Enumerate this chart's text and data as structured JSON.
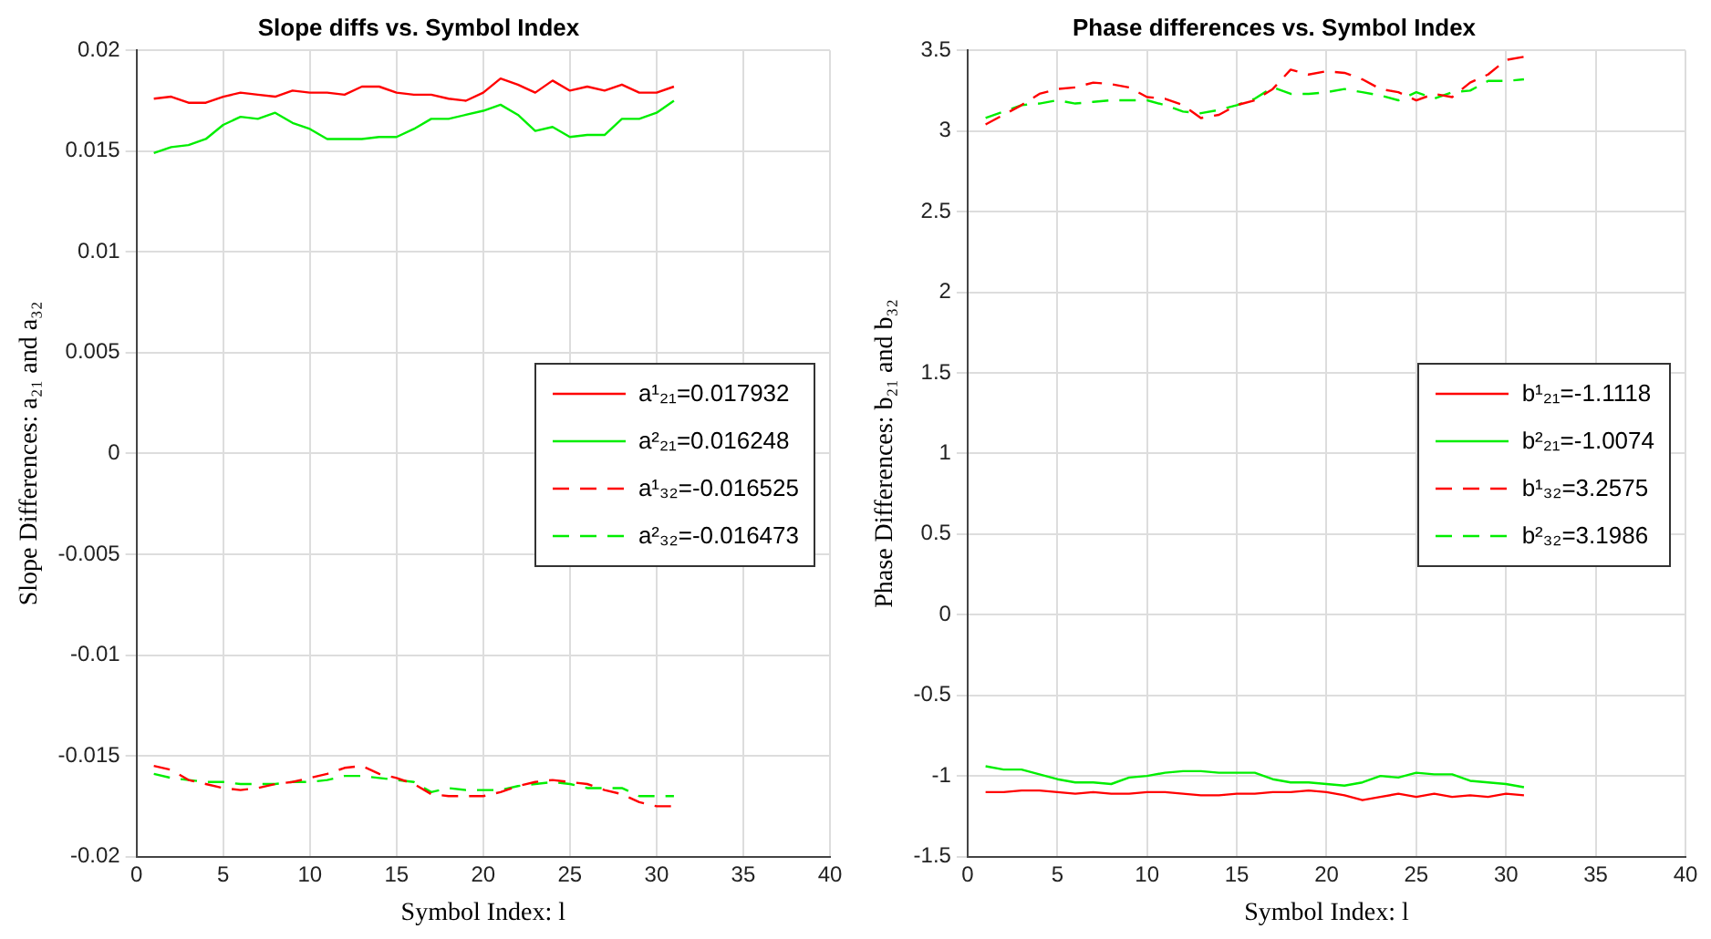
{
  "chart_data": [
    {
      "type": "line",
      "title": "Slope diffs vs. Symbol Index",
      "xlabel": "Symbol Index: l",
      "ylabel": "Slope Differences: a₂₁ and a₃₂",
      "x": [
        1,
        2,
        3,
        4,
        5,
        6,
        7,
        8,
        9,
        10,
        11,
        12,
        13,
        14,
        15,
        16,
        17,
        18,
        19,
        20,
        21,
        22,
        23,
        24,
        25,
        26,
        27,
        28,
        29,
        30,
        31
      ],
      "xlim": [
        0,
        40
      ],
      "xticks": [
        0,
        5,
        10,
        15,
        20,
        25,
        30,
        35,
        40
      ],
      "ylim": [
        -0.02,
        0.02
      ],
      "yticks": [
        -0.02,
        -0.015,
        -0.01,
        -0.005,
        0,
        0.005,
        0.01,
        0.015,
        0.02
      ],
      "grid": true,
      "legend": "right",
      "marker": "none",
      "series": [
        {
          "name": "a¹₂₁=0.017932",
          "color": "#ff0000",
          "line_style": "solid",
          "values": [
            0.0176,
            0.0177,
            0.0174,
            0.0174,
            0.0177,
            0.0179,
            0.0178,
            0.0177,
            0.018,
            0.0179,
            0.0179,
            0.0178,
            0.0182,
            0.0182,
            0.0179,
            0.0178,
            0.0178,
            0.0176,
            0.0175,
            0.0179,
            0.0186,
            0.0183,
            0.0179,
            0.0185,
            0.018,
            0.0182,
            0.018,
            0.0183,
            0.0179,
            0.0179,
            0.0182
          ]
        },
        {
          "name": "a²₂₁=0.016248",
          "color": "#00ee00",
          "line_style": "solid",
          "values": [
            0.0149,
            0.0152,
            0.0153,
            0.0156,
            0.0163,
            0.0167,
            0.0166,
            0.0169,
            0.0164,
            0.0161,
            0.0156,
            0.0156,
            0.0156,
            0.0157,
            0.0157,
            0.0161,
            0.0166,
            0.0166,
            0.0168,
            0.017,
            0.0173,
            0.0168,
            0.016,
            0.0162,
            0.0157,
            0.0158,
            0.0158,
            0.0166,
            0.0166,
            0.0169,
            0.0175
          ]
        },
        {
          "name": "a¹₃₂=-0.016525",
          "color": "#ff0000",
          "line_style": "dashed",
          "values": [
            -0.0155,
            -0.0157,
            -0.0162,
            -0.0164,
            -0.0166,
            -0.0167,
            -0.0166,
            -0.0164,
            -0.0163,
            -0.0161,
            -0.0159,
            -0.0156,
            -0.0155,
            -0.0159,
            -0.0161,
            -0.0164,
            -0.0169,
            -0.017,
            -0.017,
            -0.017,
            -0.0168,
            -0.0165,
            -0.0163,
            -0.0162,
            -0.0163,
            -0.0164,
            -0.0167,
            -0.0169,
            -0.0173,
            -0.0175,
            -0.0175
          ]
        },
        {
          "name": "a²₃₂=-0.016473",
          "color": "#00ee00",
          "line_style": "dashed",
          "values": [
            -0.0159,
            -0.0161,
            -0.0162,
            -0.0163,
            -0.0163,
            -0.0164,
            -0.0164,
            -0.0164,
            -0.0163,
            -0.0163,
            -0.0162,
            -0.016,
            -0.016,
            -0.0161,
            -0.0162,
            -0.0163,
            -0.0168,
            -0.0166,
            -0.0167,
            -0.0167,
            -0.0167,
            -0.0165,
            -0.0164,
            -0.0163,
            -0.0164,
            -0.0166,
            -0.0166,
            -0.0166,
            -0.017,
            -0.017,
            -0.017
          ]
        }
      ]
    },
    {
      "type": "line",
      "title": "Phase differences vs. Symbol Index",
      "xlabel": "Symbol Index: l",
      "ylabel": "Phase Differences: b₂₁ and b₃₂",
      "x": [
        1,
        2,
        3,
        4,
        5,
        6,
        7,
        8,
        9,
        10,
        11,
        12,
        13,
        14,
        15,
        16,
        17,
        18,
        19,
        20,
        21,
        22,
        23,
        24,
        25,
        26,
        27,
        28,
        29,
        30,
        31
      ],
      "xlim": [
        0,
        40
      ],
      "xticks": [
        0,
        5,
        10,
        15,
        20,
        25,
        30,
        35,
        40
      ],
      "ylim": [
        -1.5,
        3.5
      ],
      "yticks": [
        -1.5,
        -1,
        -0.5,
        0,
        0.5,
        1,
        1.5,
        2,
        2.5,
        3,
        3.5
      ],
      "grid": true,
      "legend": "right",
      "marker": "none",
      "series": [
        {
          "name": "b¹₂₁=-1.1118",
          "color": "#ff0000",
          "line_style": "solid",
          "values": [
            -1.1,
            -1.1,
            -1.09,
            -1.09,
            -1.1,
            -1.11,
            -1.1,
            -1.11,
            -1.11,
            -1.1,
            -1.1,
            -1.11,
            -1.12,
            -1.12,
            -1.11,
            -1.11,
            -1.1,
            -1.1,
            -1.09,
            -1.1,
            -1.12,
            -1.15,
            -1.13,
            -1.11,
            -1.13,
            -1.11,
            -1.13,
            -1.12,
            -1.13,
            -1.11,
            -1.12
          ]
        },
        {
          "name": "b²₂₁=-1.0074",
          "color": "#00ee00",
          "line_style": "solid",
          "values": [
            -0.94,
            -0.96,
            -0.96,
            -0.99,
            -1.02,
            -1.04,
            -1.04,
            -1.05,
            -1.01,
            -1.0,
            -0.98,
            -0.97,
            -0.97,
            -0.98,
            -0.98,
            -0.98,
            -1.02,
            -1.04,
            -1.04,
            -1.05,
            -1.06,
            -1.04,
            -1.0,
            -1.01,
            -0.98,
            -0.99,
            -0.99,
            -1.03,
            -1.04,
            -1.05,
            -1.07
          ]
        },
        {
          "name": "b¹₃₂=3.2575",
          "color": "#ff0000",
          "line_style": "dashed",
          "values": [
            3.04,
            3.1,
            3.16,
            3.23,
            3.26,
            3.27,
            3.3,
            3.29,
            3.27,
            3.21,
            3.2,
            3.16,
            3.08,
            3.1,
            3.16,
            3.19,
            3.26,
            3.38,
            3.35,
            3.37,
            3.36,
            3.32,
            3.26,
            3.24,
            3.19,
            3.23,
            3.21,
            3.3,
            3.35,
            3.44,
            3.46
          ]
        },
        {
          "name": "b²₃₂=3.1986",
          "color": "#00ee00",
          "line_style": "dashed",
          "values": [
            3.08,
            3.12,
            3.16,
            3.17,
            3.19,
            3.17,
            3.18,
            3.19,
            3.19,
            3.19,
            3.16,
            3.12,
            3.11,
            3.13,
            3.16,
            3.2,
            3.27,
            3.23,
            3.23,
            3.24,
            3.26,
            3.24,
            3.22,
            3.19,
            3.24,
            3.2,
            3.24,
            3.25,
            3.31,
            3.31,
            3.32
          ]
        }
      ]
    }
  ]
}
